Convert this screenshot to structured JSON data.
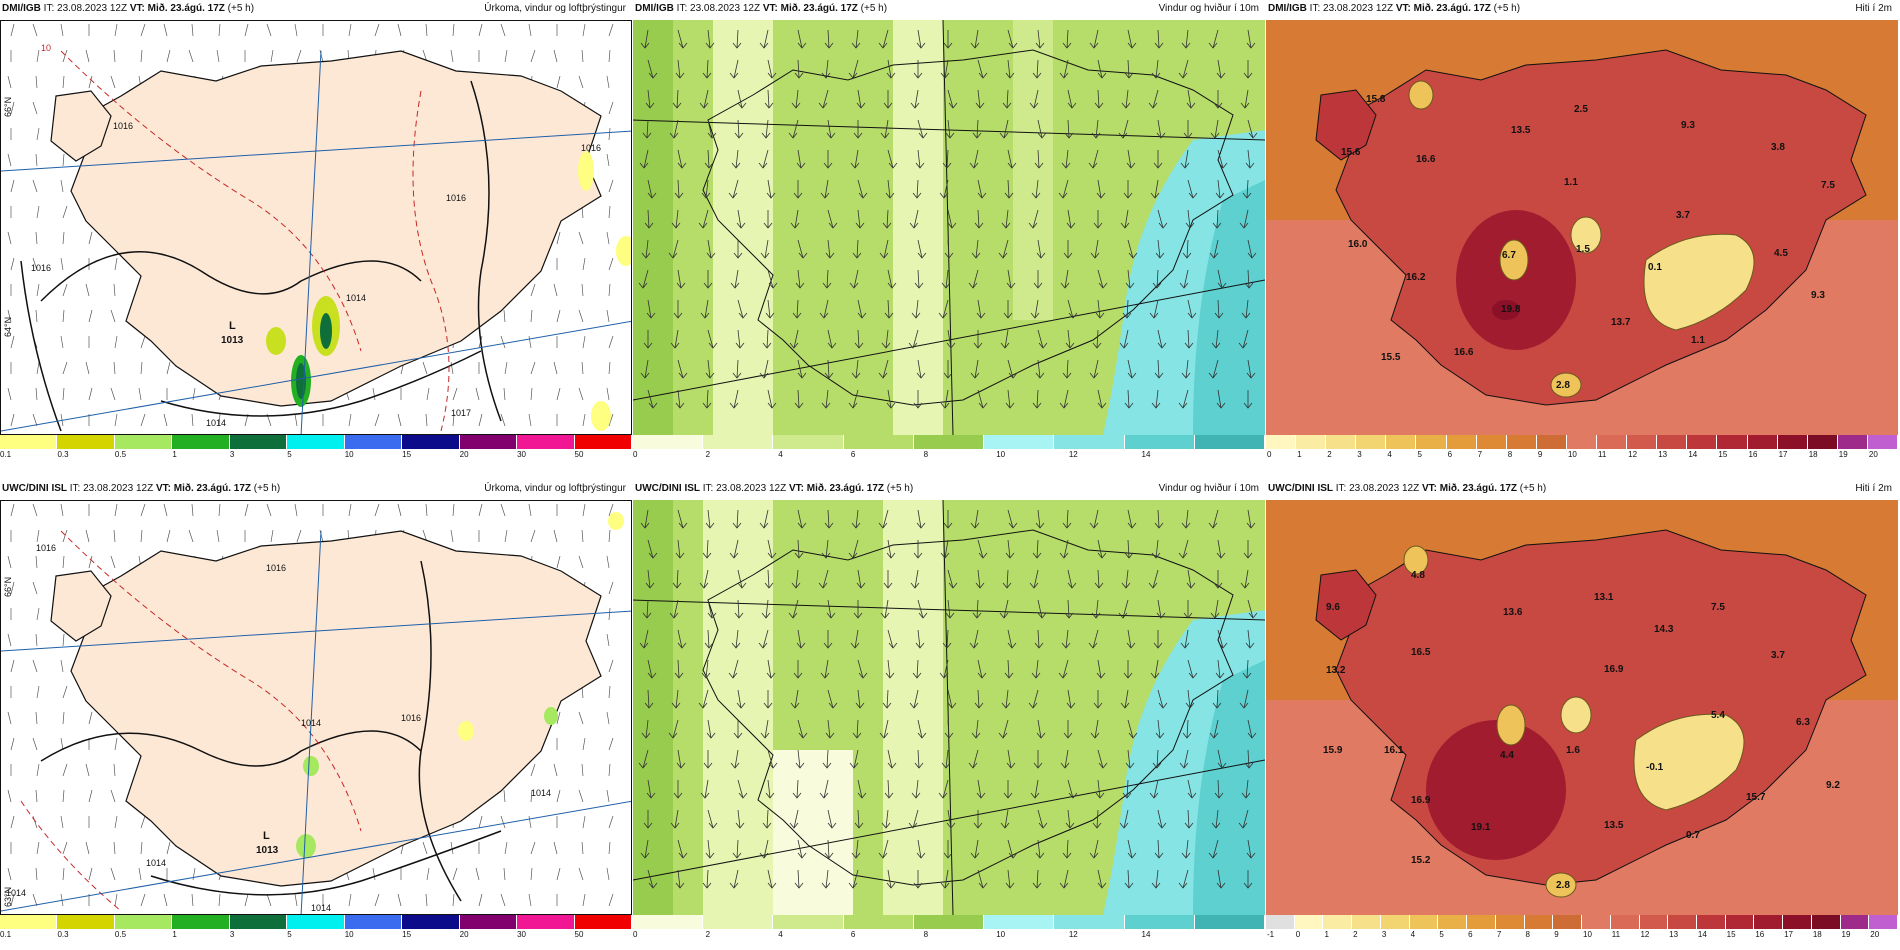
{
  "panels": {
    "p1": {
      "model": "DMI/IGB",
      "it": "IT: 23.08.2023 12Z",
      "vt": "VT: Mið. 23.ágú. 17Z",
      "lead": "(+5 h)",
      "title": "Úrkoma, vindur og loftþrýstingur"
    },
    "p2": {
      "model": "DMI/IGB",
      "it": "IT: 23.08.2023 12Z",
      "vt": "VT: Mið. 23.ágú. 17Z",
      "lead": "(+5 h)",
      "title": "Vindur og hviður í 10m"
    },
    "p3": {
      "model": "DMI/IGB",
      "it": "IT: 23.08.2023 12Z",
      "vt": "VT: Mið. 23.ágú. 17Z",
      "lead": "(+5 h)",
      "title": "Hiti í 2m"
    },
    "p4": {
      "model": "UWC/DINI ISL",
      "it": "IT: 23.08.2023 12Z",
      "vt": "VT: Mið. 23.ágú. 17Z",
      "lead": "(+5 h)",
      "title": "Úrkoma, vindur og loftþrýstingur"
    },
    "p5": {
      "model": "UWC/DINI ISL",
      "it": "IT: 23.08.2023 12Z",
      "vt": "VT: Mið. 23.ágú. 17Z",
      "lead": "(+5 h)",
      "title": "Vindur og hviður í 10m"
    },
    "p6": {
      "model": "UWC/DINI ISL",
      "it": "IT: 23.08.2023 12Z",
      "vt": "VT: Mið. 23.ágú. 17Z",
      "lead": "(+5 h)",
      "title": "Hiti í 2m"
    }
  },
  "pressure_labels": {
    "p1": {
      "low": "L",
      "low_value": "1013",
      "isobars": [
        "1016",
        "1016",
        "1016",
        "1016",
        "1014",
        "1014",
        "1017",
        "10"
      ]
    },
    "p4": {
      "low": "L",
      "low_value": "1013",
      "isobars": [
        "1016",
        "1016",
        "1016",
        "1014",
        "1014",
        "1014",
        "1014",
        "1014"
      ]
    }
  },
  "temperatures": {
    "p3": [
      "15.8",
      "15.6",
      "16.6",
      "13.5",
      "2.5",
      "9.3",
      "3.8",
      "7.5",
      "1.1",
      "3.7",
      "16.0",
      "6.7",
      "1.5",
      "0.1",
      "4.5",
      "9.3",
      "16.2",
      "19.8",
      "13.7",
      "1.1",
      "15.5",
      "16.6",
      "2.8"
    ],
    "p6": [
      "4.8",
      "9.6",
      "13.6",
      "13.1",
      "7.5",
      "14.3",
      "16.5",
      "16.9",
      "3.7",
      "13.2",
      "5.4",
      "6.3",
      "15.9",
      "16.1",
      "4.4",
      "1.6",
      "-0.1",
      "16.9",
      "19.1",
      "13.5",
      "15.7",
      "9.2",
      "0.7",
      "15.2",
      "2.8"
    ]
  },
  "colorbars": {
    "precip": {
      "ticks": [
        "0.1",
        "0.3",
        "0.5",
        "1",
        "3",
        "5",
        "10",
        "15",
        "20",
        "30",
        "50"
      ],
      "colors": [
        "#fefe80",
        "#d4d400",
        "#a6e860",
        "#22b022",
        "#0f6f3a",
        "#00f0f0",
        "#3b6cf0",
        "#0c0c8a",
        "#82006e",
        "#f01694",
        "#f00000"
      ]
    },
    "wind": {
      "ticks": [
        "0",
        "2",
        "4",
        "6",
        "8",
        "10",
        "12",
        "14"
      ],
      "colors": [
        "#f8fbdc",
        "#e6f5b2",
        "#cfea8c",
        "#b6dc6a",
        "#98cc4e",
        "#a8f4f4",
        "#86e4e4",
        "#5ed0d0",
        "#40b4b4"
      ]
    },
    "temp_top": {
      "ticks": [
        "0",
        "1",
        "2",
        "3",
        "4",
        "5",
        "6",
        "7",
        "8",
        "9",
        "10",
        "11",
        "12",
        "13",
        "14",
        "15",
        "16",
        "17",
        "18",
        "19",
        "20"
      ],
      "colors": [
        "#fff6c0",
        "#fbeca4",
        "#f7e08a",
        "#f2d470",
        "#eec35a",
        "#e9b048",
        "#e49c3a",
        "#de8a34",
        "#d67a34",
        "#ce6c36",
        "#e07a62",
        "#da6a56",
        "#d25a4c",
        "#c84842",
        "#bc363a",
        "#b02834",
        "#a01c2e",
        "#8c1028",
        "#7c0c24",
        "#9e2a8a",
        "#c060d0"
      ]
    },
    "temp_bottom": {
      "ticks": [
        "-1",
        "0",
        "1",
        "2",
        "3",
        "4",
        "5",
        "6",
        "7",
        "8",
        "9",
        "10",
        "11",
        "12",
        "13",
        "14",
        "15",
        "16",
        "17",
        "18",
        "19",
        "20"
      ],
      "colors": [
        "#e0e0e0",
        "#fff6c0",
        "#fbeca4",
        "#f7e08a",
        "#f2d470",
        "#eec35a",
        "#e9b048",
        "#e49c3a",
        "#de8a34",
        "#d67a34",
        "#ce6c36",
        "#e07a62",
        "#da6a56",
        "#d25a4c",
        "#c84842",
        "#bc363a",
        "#b02834",
        "#a01c2e",
        "#8c1028",
        "#7c0c24",
        "#9e2a8a",
        "#c060d0"
      ]
    }
  },
  "grid_labels": {
    "lat1": "66°N",
    "lat2": "64°N",
    "lat3": "63°N"
  }
}
